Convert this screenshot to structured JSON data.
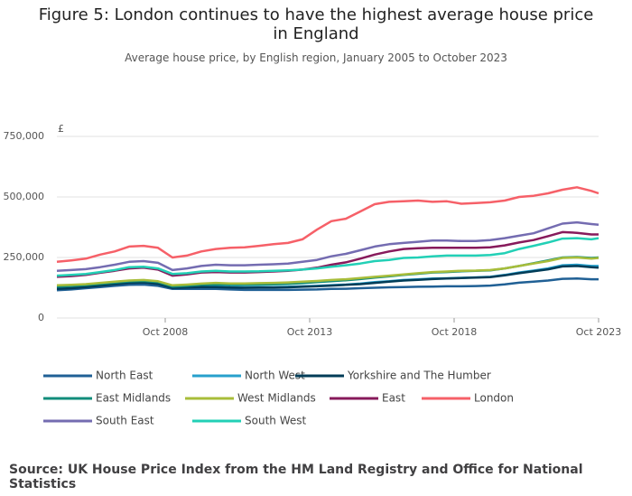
{
  "chart_data": {
    "type": "line",
    "title": "Figure 5: London continues to have the highest average house price in England",
    "subtitle": "Average house price, by English region, January 2005 to October 2023",
    "y_label": "£",
    "source": "Source: UK House Price Index from the HM Land Registry and Office for National Statistics",
    "x": [
      "Jan 2005",
      "Jul 2005",
      "Jan 2006",
      "Jul 2006",
      "Jan 2007",
      "Jul 2007",
      "Jan 2008",
      "Jul 2008",
      "Jan 2009",
      "Jul 2009",
      "Jan 2010",
      "Jul 2010",
      "Jan 2011",
      "Jul 2011",
      "Jan 2012",
      "Jul 2012",
      "Jan 2013",
      "Jul 2013",
      "Jan 2014",
      "Jul 2014",
      "Jan 2015",
      "Jul 2015",
      "Jan 2016",
      "Jul 2016",
      "Jan 2017",
      "Jul 2017",
      "Jan 2018",
      "Jul 2018",
      "Jan 2019",
      "Jul 2019",
      "Jan 2020",
      "Jul 2020",
      "Jan 2021",
      "Jul 2021",
      "Jan 2022",
      "Jul 2022",
      "Jan 2023",
      "Jul 2023",
      "Oct 2023"
    ],
    "xlim": [
      "Jan 2005",
      "Oct 2023"
    ],
    "xticks": [
      "Oct 2008",
      "Oct 2013",
      "Oct 2018",
      "Oct 2023"
    ],
    "ylim": [
      0,
      750000
    ],
    "yticks": [
      0,
      {
        "value": 250000,
        "label": "250,000"
      },
      {
        "value": 500000,
        "label": "500,000"
      },
      {
        "value": 750000,
        "label": "750,000"
      }
    ],
    "grid": true,
    "series": [
      {
        "name": "North East",
        "color": "#206095",
        "values": [
          115000,
          118000,
          123000,
          128000,
          133000,
          137000,
          138000,
          133000,
          120000,
          121000,
          120000,
          120000,
          118000,
          116000,
          116000,
          116000,
          116000,
          117000,
          118000,
          120000,
          121000,
          123000,
          125000,
          127000,
          128000,
          129000,
          130000,
          131000,
          131000,
          132000,
          134000,
          139000,
          146000,
          150000,
          155000,
          162000,
          163000,
          160000,
          160000
        ]
      },
      {
        "name": "North West",
        "color": "#27a0cc",
        "values": [
          125000,
          128000,
          133000,
          138000,
          145000,
          150000,
          152000,
          146000,
          125000,
          127000,
          130000,
          131000,
          128000,
          127000,
          128000,
          128000,
          129000,
          131000,
          133000,
          136000,
          138000,
          142000,
          148000,
          152000,
          157000,
          160000,
          163000,
          164000,
          166000,
          168000,
          170000,
          178000,
          188000,
          196000,
          205000,
          218000,
          220000,
          215000,
          215000
        ]
      },
      {
        "name": "Yorkshire and The Humber",
        "color": "#003c57",
        "values": [
          120000,
          123000,
          128000,
          134000,
          140000,
          145000,
          147000,
          141000,
          124000,
          126000,
          128000,
          128000,
          126000,
          125000,
          126000,
          126000,
          127000,
          129000,
          131000,
          134000,
          137000,
          140000,
          145000,
          150000,
          155000,
          158000,
          161000,
          163000,
          165000,
          167000,
          169000,
          176000,
          185000,
          193000,
          201000,
          213000,
          215000,
          210000,
          208000
        ]
      },
      {
        "name": "East Midlands",
        "color": "#118c7b",
        "values": [
          130000,
          132000,
          136000,
          141000,
          146000,
          151000,
          153000,
          148000,
          130000,
          133000,
          137000,
          139000,
          137000,
          137000,
          138000,
          139000,
          141000,
          144000,
          148000,
          152000,
          156000,
          161000,
          167000,
          172000,
          178000,
          183000,
          188000,
          190000,
          193000,
          195000,
          197000,
          205000,
          215000,
          226000,
          238000,
          250000,
          252000,
          248000,
          250000
        ]
      },
      {
        "name": "West Midlands",
        "color": "#a8bd3a",
        "values": [
          135000,
          137000,
          140000,
          145000,
          150000,
          155000,
          157000,
          152000,
          135000,
          138000,
          142000,
          145000,
          143000,
          143000,
          144000,
          145000,
          147000,
          150000,
          153000,
          157000,
          160000,
          165000,
          170000,
          175000,
          180000,
          185000,
          190000,
          192000,
          195000,
          196000,
          198000,
          205000,
          215000,
          225000,
          235000,
          248000,
          250000,
          245000,
          248000
        ]
      },
      {
        "name": "East",
        "color": "#871a5b",
        "values": [
          170000,
          173000,
          178000,
          187000,
          195000,
          205000,
          208000,
          200000,
          175000,
          180000,
          188000,
          190000,
          188000,
          188000,
          190000,
          192000,
          195000,
          200000,
          208000,
          220000,
          230000,
          245000,
          262000,
          275000,
          285000,
          288000,
          290000,
          290000,
          290000,
          290000,
          292000,
          300000,
          312000,
          322000,
          338000,
          355000,
          352000,
          345000,
          345000
        ]
      },
      {
        "name": "London",
        "color": "#f66068",
        "values": [
          232000,
          238000,
          245000,
          262000,
          275000,
          295000,
          298000,
          290000,
          250000,
          258000,
          275000,
          285000,
          290000,
          292000,
          298000,
          305000,
          310000,
          325000,
          365000,
          400000,
          410000,
          440000,
          470000,
          480000,
          482000,
          485000,
          480000,
          482000,
          472000,
          475000,
          478000,
          485000,
          500000,
          505000,
          515000,
          530000,
          540000,
          525000,
          515000
        ]
      },
      {
        "name": "South East",
        "color": "#746cb1",
        "values": [
          195000,
          198000,
          202000,
          210000,
          220000,
          232000,
          235000,
          228000,
          198000,
          205000,
          215000,
          220000,
          218000,
          218000,
          220000,
          222000,
          225000,
          232000,
          240000,
          255000,
          265000,
          280000,
          295000,
          305000,
          310000,
          315000,
          320000,
          320000,
          318000,
          318000,
          322000,
          330000,
          340000,
          350000,
          370000,
          390000,
          395000,
          388000,
          385000
        ]
      },
      {
        "name": "South West",
        "color": "#22d0b6",
        "values": [
          175000,
          178000,
          182000,
          190000,
          198000,
          210000,
          212000,
          205000,
          182000,
          185000,
          192000,
          195000,
          192000,
          192000,
          193000,
          195000,
          197000,
          200000,
          205000,
          212000,
          218000,
          225000,
          235000,
          240000,
          248000,
          250000,
          255000,
          258000,
          258000,
          258000,
          260000,
          268000,
          285000,
          298000,
          312000,
          328000,
          330000,
          325000,
          330000
        ]
      }
    ]
  }
}
